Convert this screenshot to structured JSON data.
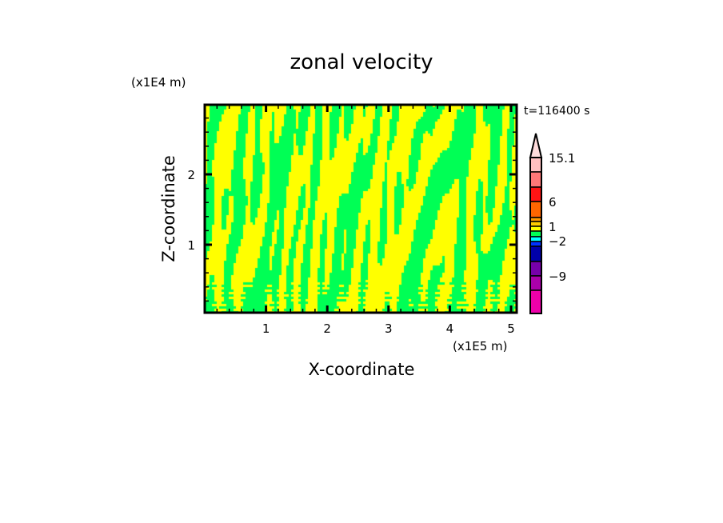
{
  "chart_data": {
    "type": "heatmap",
    "title": "zonal velocity",
    "xlabel": "X-coordinate",
    "ylabel": "Z-coordinate",
    "x_unit_label": "(x1E5 m)",
    "y_unit_label": "(x1E4 m)",
    "time_label": "t=116400 s",
    "xlim": [
      0,
      5.1
    ],
    "ylim": [
      0,
      3
    ],
    "x_ticks": [
      1,
      2,
      3,
      4,
      5
    ],
    "y_ticks": [
      1,
      2
    ],
    "x_tick_labels": [
      "1",
      "2",
      "3",
      "4",
      "5"
    ],
    "y_tick_labels": [
      "1",
      "2"
    ],
    "field_colors": [
      "#ffff00",
      "#00ff55"
    ],
    "colorbar": {
      "labels": [
        {
          "text": "15.1",
          "level": 15.1
        },
        {
          "text": "6",
          "level": 6
        },
        {
          "text": "1",
          "level": 1
        },
        {
          "text": "−2",
          "level": -2
        },
        {
          "text": "−9",
          "level": -9
        }
      ],
      "tip_color": "#ffdcdc",
      "segment_colors": [
        "#ffc0c0",
        "#ff7878",
        "#ff1414",
        "#ff6600",
        "#ff9900",
        "#ffcc00",
        "#ffff00",
        "#00ff55",
        "#00ffff",
        "#0033ff",
        "#0000aa",
        "#7700aa",
        "#aa00aa",
        "#ee00aa"
      ]
    }
  }
}
